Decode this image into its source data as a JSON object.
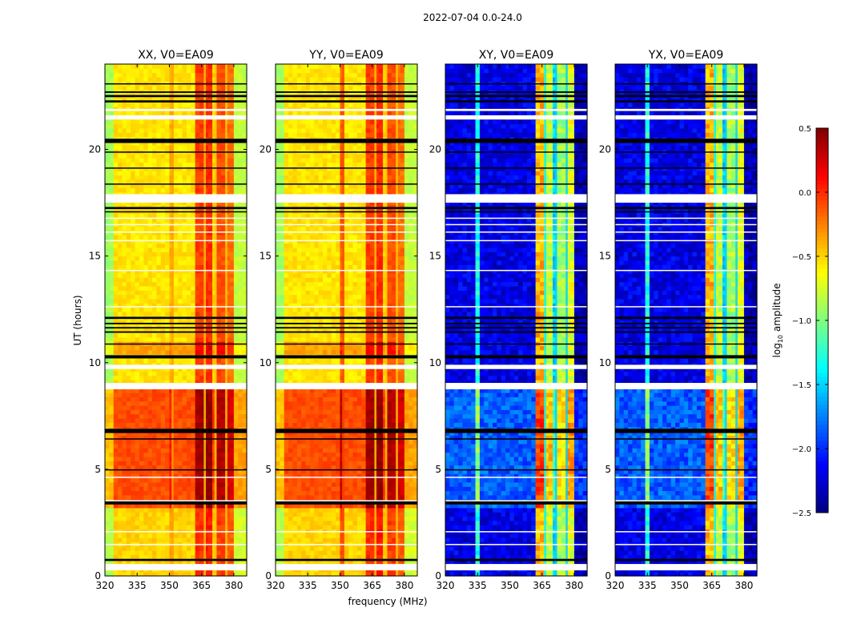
{
  "chart_data": {
    "type": "heatmap",
    "title": "2022-07-04 0.0-24.0",
    "xlabel": "frequency (MHz)",
    "ylabel": "UT (hours)",
    "xlim": [
      320,
      386
    ],
    "ylim": [
      0,
      24
    ],
    "xticks": [
      "320",
      "335",
      "350",
      "365",
      "380"
    ],
    "xtick_values": [
      320,
      335,
      350,
      365,
      380
    ],
    "yticks": [
      "0",
      "5",
      "10",
      "15",
      "20"
    ],
    "ytick_values": [
      0,
      5,
      10,
      15,
      20
    ],
    "colorbar": {
      "label_prefix": "log",
      "label_sub": "10",
      "label_suffix": " amplitude",
      "range": [
        -2.5,
        0.5
      ],
      "colormap": "jet",
      "ticks": [
        "0.5",
        "0.0",
        "−0.5",
        "−1.0",
        "−1.5",
        "−2.0",
        "−2.5"
      ],
      "tick_values": [
        0.5,
        0.0,
        -0.5,
        -1.0,
        -1.5,
        -2.0,
        -2.5
      ]
    },
    "panels": [
      {
        "title": "XX, V0=EA09",
        "freq_profile": [
          [
            320,
            324,
            -0.85
          ],
          [
            324,
            351,
            -0.5
          ],
          [
            351,
            352,
            -0.35
          ],
          [
            352,
            362,
            -0.5
          ],
          [
            362,
            366,
            0.0
          ],
          [
            366,
            367,
            -0.45
          ],
          [
            367,
            371,
            0.05
          ],
          [
            371,
            372,
            -0.45
          ],
          [
            372,
            376,
            -0.05
          ],
          [
            376,
            377,
            -0.45
          ],
          [
            377,
            380,
            -0.15
          ],
          [
            380,
            386,
            -0.75
          ]
        ],
        "time_offsets": [
          [
            0,
            3.3,
            0.0
          ],
          [
            3.3,
            9.0,
            0.4
          ],
          [
            9.0,
            10.4,
            -0.05
          ],
          [
            10.4,
            11.0,
            0.15
          ],
          [
            11.0,
            24,
            -0.05
          ]
        ]
      },
      {
        "title": "YY, V0=EA09",
        "freq_profile": [
          [
            320,
            324,
            -0.85
          ],
          [
            324,
            351,
            -0.5
          ],
          [
            351,
            352,
            -0.1
          ],
          [
            352,
            362,
            -0.5
          ],
          [
            362,
            366,
            0.0
          ],
          [
            366,
            367,
            -0.45
          ],
          [
            367,
            371,
            0.05
          ],
          [
            371,
            372,
            -0.45
          ],
          [
            372,
            376,
            -0.05
          ],
          [
            376,
            377,
            -0.45
          ],
          [
            377,
            380,
            -0.15
          ],
          [
            380,
            386,
            -0.75
          ]
        ],
        "time_offsets": [
          [
            0,
            3.3,
            0.0
          ],
          [
            3.3,
            9.0,
            0.4
          ],
          [
            9.0,
            10.4,
            -0.05
          ],
          [
            10.4,
            11.0,
            0.15
          ],
          [
            11.0,
            24,
            -0.05
          ]
        ]
      },
      {
        "title": "XY, V0=EA09",
        "freq_profile": [
          [
            320,
            335,
            -2.2
          ],
          [
            335,
            337,
            -1.3
          ],
          [
            337,
            362,
            -2.2
          ],
          [
            362,
            366,
            -0.4
          ],
          [
            366,
            367,
            -1.4
          ],
          [
            367,
            371,
            -0.8
          ],
          [
            371,
            372,
            -1.5
          ],
          [
            372,
            376,
            -0.9
          ],
          [
            376,
            377,
            -1.5
          ],
          [
            377,
            380,
            -0.7
          ],
          [
            380,
            386,
            -2.35
          ]
        ],
        "time_offsets": [
          [
            0,
            3.3,
            0.0
          ],
          [
            3.3,
            9.0,
            0.35
          ],
          [
            9.0,
            24,
            0.0
          ]
        ]
      },
      {
        "title": "YX, V0=EA09",
        "freq_profile": [
          [
            320,
            335,
            -2.2
          ],
          [
            335,
            337,
            -1.3
          ],
          [
            337,
            362,
            -2.2
          ],
          [
            362,
            366,
            -0.4
          ],
          [
            366,
            367,
            -1.4
          ],
          [
            367,
            371,
            -0.8
          ],
          [
            371,
            372,
            -1.5
          ],
          [
            372,
            376,
            -0.9
          ],
          [
            376,
            377,
            -1.5
          ],
          [
            377,
            380,
            -0.7
          ],
          [
            380,
            386,
            -2.35
          ]
        ],
        "time_offsets": [
          [
            0,
            3.3,
            0.0
          ],
          [
            3.3,
            9.0,
            0.35
          ],
          [
            9.0,
            24,
            0.0
          ]
        ]
      }
    ],
    "flags": [
      [
        0.26,
        0.56,
        "white"
      ],
      [
        0.7,
        0.8,
        "black"
      ],
      [
        1.45,
        1.5,
        "white"
      ],
      [
        2.05,
        2.1,
        "white"
      ],
      [
        3.35,
        3.5,
        "black"
      ],
      [
        3.5,
        3.55,
        "white"
      ],
      [
        4.6,
        4.65,
        "white"
      ],
      [
        4.95,
        5.0,
        "black"
      ],
      [
        6.4,
        6.45,
        "black"
      ],
      [
        6.7,
        6.9,
        "black"
      ],
      [
        8.75,
        9.05,
        "white"
      ],
      [
        9.7,
        9.9,
        "white"
      ],
      [
        10.2,
        10.35,
        "black"
      ],
      [
        10.85,
        10.9,
        "black"
      ],
      [
        11.4,
        11.47,
        "black"
      ],
      [
        11.6,
        11.67,
        "black"
      ],
      [
        11.8,
        11.87,
        "black"
      ],
      [
        12.05,
        12.15,
        "black"
      ],
      [
        12.6,
        12.65,
        "white"
      ],
      [
        14.3,
        14.35,
        "white"
      ],
      [
        15.7,
        15.75,
        "white"
      ],
      [
        16.1,
        16.15,
        "white"
      ],
      [
        16.45,
        16.5,
        "white"
      ],
      [
        16.75,
        16.8,
        "white"
      ],
      [
        17.05,
        17.1,
        "black"
      ],
      [
        17.2,
        17.3,
        "black"
      ],
      [
        17.5,
        17.9,
        "white"
      ],
      [
        18.35,
        18.4,
        "black"
      ],
      [
        19.1,
        19.15,
        "black"
      ],
      [
        19.85,
        19.9,
        "black"
      ],
      [
        20.3,
        20.5,
        "black"
      ],
      [
        21.4,
        21.6,
        "white"
      ],
      [
        21.8,
        21.9,
        "white"
      ],
      [
        22.2,
        22.3,
        "black"
      ],
      [
        22.45,
        22.55,
        "black"
      ],
      [
        22.65,
        22.72,
        "black"
      ],
      [
        23.05,
        23.1,
        "black"
      ]
    ]
  }
}
